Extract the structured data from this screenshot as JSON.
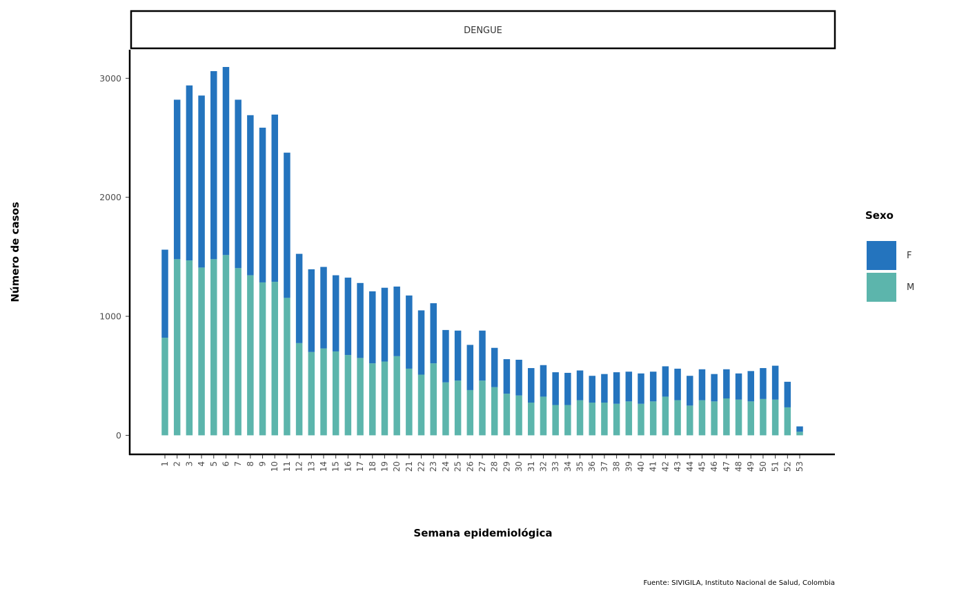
{
  "chart_data": {
    "type": "bar",
    "stacked": true,
    "facet_label": "DENGUE",
    "xlabel": "Semana epidemiológica",
    "ylabel": "Número de casos",
    "caption": "Fuente: SIVIGILA, Instituto Nacional de Salud, Colombia",
    "ylim": [
      -160,
      3240
    ],
    "yticks": [
      0,
      1000,
      2000,
      3000
    ],
    "grid": false,
    "legend": {
      "title": "Sexo",
      "position": "right",
      "entries": [
        {
          "label": "F",
          "color": "#2474BE"
        },
        {
          "label": "M",
          "color": "#5CB5AC"
        }
      ]
    },
    "categories": [
      "1",
      "2",
      "3",
      "4",
      "5",
      "6",
      "7",
      "8",
      "9",
      "10",
      "11",
      "12",
      "13",
      "14",
      "15",
      "16",
      "17",
      "18",
      "19",
      "20",
      "21",
      "22",
      "23",
      "24",
      "25",
      "26",
      "27",
      "28",
      "29",
      "30",
      "31",
      "32",
      "33",
      "34",
      "35",
      "36",
      "37",
      "38",
      "39",
      "40",
      "41",
      "42",
      "43",
      "44",
      "45",
      "46",
      "47",
      "48",
      "49",
      "50",
      "51",
      "52",
      "53"
    ],
    "series": [
      {
        "name": "M",
        "color": "#5CB5AC",
        "values": [
          820,
          1480,
          1470,
          1410,
          1480,
          1515,
          1405,
          1345,
          1285,
          1290,
          1155,
          775,
          700,
          730,
          705,
          675,
          650,
          605,
          620,
          665,
          560,
          510,
          605,
          445,
          460,
          380,
          460,
          405,
          350,
          335,
          275,
          325,
          255,
          255,
          295,
          275,
          275,
          265,
          285,
          265,
          285,
          325,
          295,
          250,
          295,
          285,
          310,
          300,
          285,
          305,
          300,
          235,
          30
        ]
      },
      {
        "name": "F",
        "color": "#2474BE",
        "values": [
          740,
          1340,
          1470,
          1445,
          1580,
          1580,
          1415,
          1345,
          1300,
          1405,
          1220,
          750,
          695,
          685,
          640,
          650,
          630,
          605,
          620,
          585,
          615,
          540,
          505,
          440,
          420,
          380,
          420,
          330,
          290,
          300,
          290,
          265,
          275,
          270,
          250,
          225,
          240,
          265,
          250,
          255,
          250,
          255,
          265,
          250,
          260,
          230,
          245,
          220,
          255,
          260,
          285,
          215,
          45
        ]
      }
    ]
  }
}
